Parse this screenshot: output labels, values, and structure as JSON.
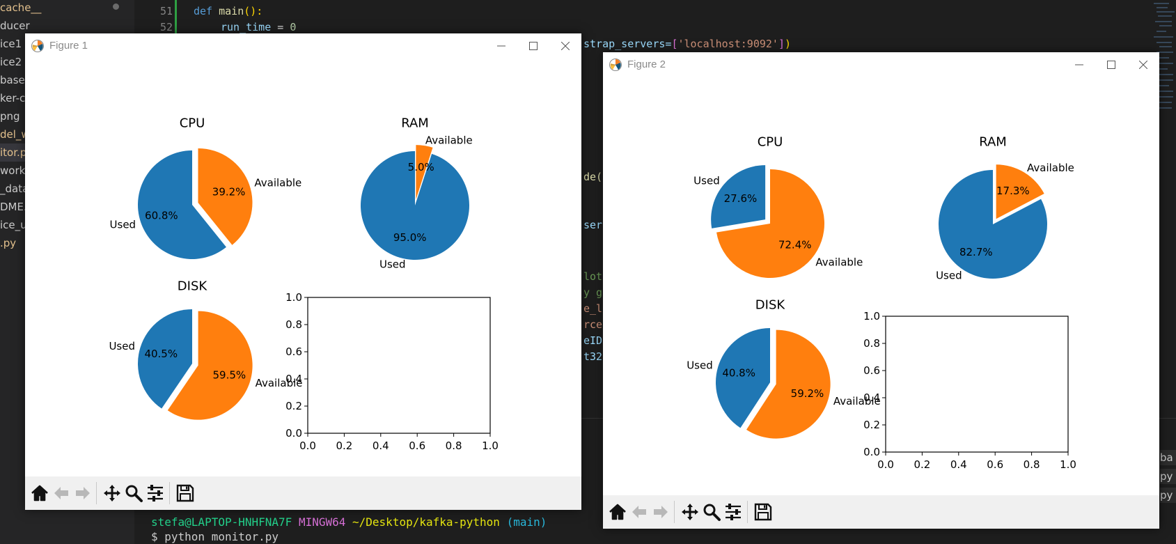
{
  "explorer": {
    "items": [
      "cache__",
      "ducer",
      "ice1",
      "ice2",
      "base",
      "ker-co",
      "png",
      "del_wo",
      "itor.p",
      "work.p",
      "_data",
      "DME.",
      "ice_us",
      ".py"
    ]
  },
  "editor": {
    "line_numbers": [
      "51",
      "52"
    ],
    "line51": {
      "kw": "def",
      "fn": "main",
      "rest": "():"
    },
    "line52": {
      "var": "run_time",
      "op": " = ",
      "num": "0"
    },
    "frag_servers_pre": "strap_servers=",
    "frag_servers_str": "'localhost:9092'",
    "frag_de": "de(",
    "frag_ser": "ser",
    "frag_lot": "lot",
    "frag_yg": "y g",
    "frag_el": "e_l",
    "frag_rce": "rce",
    "frag_eid": "eID",
    "frag_t32": "t32"
  },
  "terminal": {
    "user": "stefa@LAPTOP-HNHFNA7F",
    "shell": "MINGW64",
    "path": "~/Desktop/kafka-python",
    "branch": "(main)",
    "command": "$ python monitor.py"
  },
  "side_tabs": [
    "ba",
    "py",
    "py"
  ],
  "colors": {
    "used": "#1f77b4",
    "available": "#ff7f0e",
    "toolbar": "#f0f0f0",
    "editor_bg": "#1e1e1e"
  },
  "figures": [
    {
      "title": "Figure 1",
      "toolbar_icons": [
        "home-icon",
        "back-arrow-icon",
        "forward-arrow-icon",
        "pan-icon",
        "zoom-icon",
        "configure-subplots-icon",
        "save-icon"
      ]
    },
    {
      "title": "Figure 2",
      "toolbar_icons": [
        "home-icon",
        "back-arrow-icon",
        "forward-arrow-icon",
        "pan-icon",
        "zoom-icon",
        "configure-subplots-icon",
        "save-icon"
      ]
    }
  ],
  "chart_data": [
    {
      "figure": "Figure 1",
      "type": "pie",
      "title": "CPU",
      "labels": [
        "Used",
        "Available"
      ],
      "values": [
        60.8,
        39.2
      ],
      "explode": "Available",
      "autopct": [
        "60.8%",
        "39.2%"
      ]
    },
    {
      "figure": "Figure 1",
      "type": "pie",
      "title": "RAM",
      "labels": [
        "Used",
        "Available"
      ],
      "values": [
        95.0,
        5.0
      ],
      "explode": "Available",
      "autopct": [
        "95.0%",
        "5.0%"
      ]
    },
    {
      "figure": "Figure 1",
      "type": "pie",
      "title": "DISK",
      "labels": [
        "Used",
        "Available"
      ],
      "values": [
        40.5,
        59.5
      ],
      "explode": "Available",
      "autopct": [
        "40.5%",
        "59.5%"
      ]
    },
    {
      "figure": "Figure 1",
      "type": "line",
      "title": "",
      "series": [],
      "xlim": [
        0,
        1
      ],
      "ylim": [
        0,
        1
      ],
      "xticks": [
        "0.0",
        "0.2",
        "0.4",
        "0.6",
        "0.8",
        "1.0"
      ],
      "yticks": [
        "0.0",
        "0.2",
        "0.4",
        "0.6",
        "0.8",
        "1.0"
      ]
    },
    {
      "figure": "Figure 2",
      "type": "pie",
      "title": "CPU",
      "labels": [
        "Used",
        "Available"
      ],
      "values": [
        27.6,
        72.4
      ],
      "explode": "Used",
      "autopct": [
        "27.6%",
        "72.4%"
      ]
    },
    {
      "figure": "Figure 2",
      "type": "pie",
      "title": "RAM",
      "labels": [
        "Used",
        "Available"
      ],
      "values": [
        82.7,
        17.3
      ],
      "explode": "Available",
      "autopct": [
        "82.7%",
        "17.3%"
      ]
    },
    {
      "figure": "Figure 2",
      "type": "pie",
      "title": "DISK",
      "labels": [
        "Used",
        "Available"
      ],
      "values": [
        40.8,
        59.2
      ],
      "explode": "Available",
      "autopct": [
        "40.8%",
        "59.2%"
      ]
    },
    {
      "figure": "Figure 2",
      "type": "line",
      "title": "",
      "series": [],
      "xlim": [
        0,
        1
      ],
      "ylim": [
        0,
        1
      ],
      "xticks": [
        "0.0",
        "0.2",
        "0.4",
        "0.6",
        "0.8",
        "1.0"
      ],
      "yticks": [
        "0.0",
        "0.2",
        "0.4",
        "0.6",
        "0.8",
        "1.0"
      ]
    }
  ]
}
